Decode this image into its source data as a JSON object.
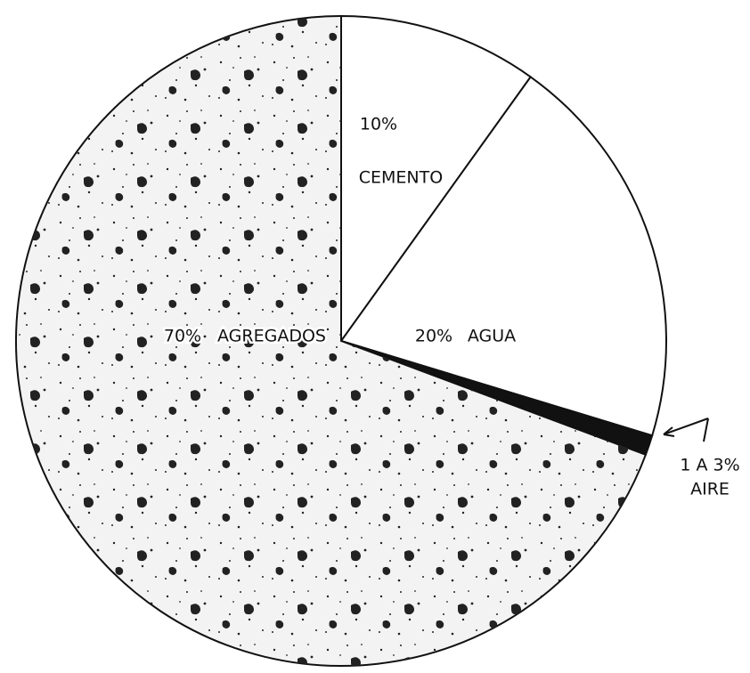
{
  "chart_data": {
    "type": "pie",
    "categories": [
      "CEMENTO",
      "AGUA",
      "AIRE",
      "AGREGADOS"
    ],
    "values": [
      10,
      20,
      1,
      70
    ],
    "value_labels": [
      "10%",
      "20%",
      "1 A 3%",
      "70%"
    ],
    "colors": [
      "#ffffff",
      "#ffffff",
      "#111111",
      "#f3f3f3"
    ]
  }
}
